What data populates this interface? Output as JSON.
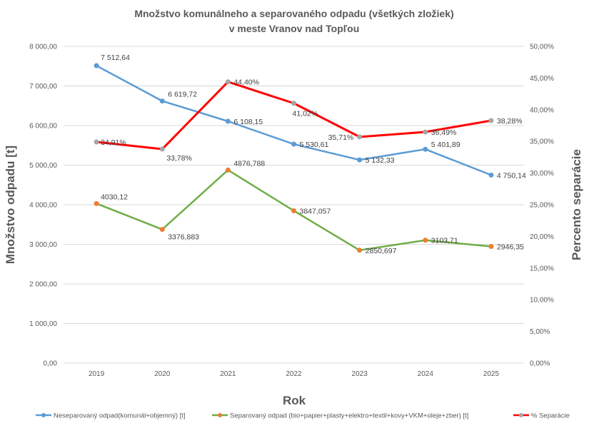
{
  "chart_data": {
    "type": "line",
    "title": [
      "Množstvo komunálneho a separovaného odpadu (všetkých zložiek)",
      "v meste Vranov nad Topľou"
    ],
    "xlabel": "Rok",
    "ylabel": "Množstvo odpadu [t]",
    "y2label": "Percento separácie",
    "categories": [
      "2019",
      "2020",
      "2021",
      "2022",
      "2023",
      "2024",
      "2025"
    ],
    "ylim": [
      0,
      8000
    ],
    "y2lim": [
      0,
      50
    ],
    "yticks": [
      "0,00",
      "1 000,00",
      "2 000,00",
      "3 000,00",
      "4 000,00",
      "5 000,00",
      "6 000,00",
      "7 000,00",
      "8 000,00"
    ],
    "y2ticks": [
      "0,00%",
      "5,00%",
      "10,00%",
      "15,00%",
      "20,00%",
      "25,00%",
      "30,00%",
      "35,00%",
      "40,00%",
      "45,00%",
      "50,00%"
    ],
    "grid": true,
    "legend_position": "bottom",
    "series": [
      {
        "name": "Neseparovaný odpad(komunál+objemný) [t]",
        "axis": "left",
        "color": "#5B9BD5",
        "marker": "#5B9BD5",
        "values": [
          7512.64,
          6619.72,
          6108.15,
          5530.61,
          5132.33,
          5401.89,
          4750.14
        ],
        "labels": [
          "7 512,64",
          "6 619,72",
          "6 108,15",
          "5 530,61",
          "5 132,33",
          "5 401,89",
          "4 750,14"
        ]
      },
      {
        "name": "Separovaný odpad (bio+papier+plasty+elektro+textil+kovy+VKM+oleje+zber) [t]",
        "axis": "left",
        "color": "#70AD47",
        "marker": "#ED7D31",
        "values": [
          4030.12,
          3376.883,
          4876.788,
          3847.057,
          2850.697,
          3103.71,
          2946.35
        ],
        "labels": [
          "4030,12",
          "3376,883",
          "4876,788",
          "3847,057",
          "2850,697",
          "3103,71",
          "2946,35"
        ]
      },
      {
        "name": "% Separácie",
        "axis": "right",
        "color": "#FF0000",
        "marker": "#A5A5A5",
        "values": [
          34.91,
          33.78,
          44.4,
          41.02,
          35.71,
          36.49,
          38.28
        ],
        "labels": [
          "34,91%",
          "33,78%",
          "44,40%",
          "41,02%",
          "35,71%",
          "36,49%",
          "38,28%"
        ]
      }
    ]
  }
}
